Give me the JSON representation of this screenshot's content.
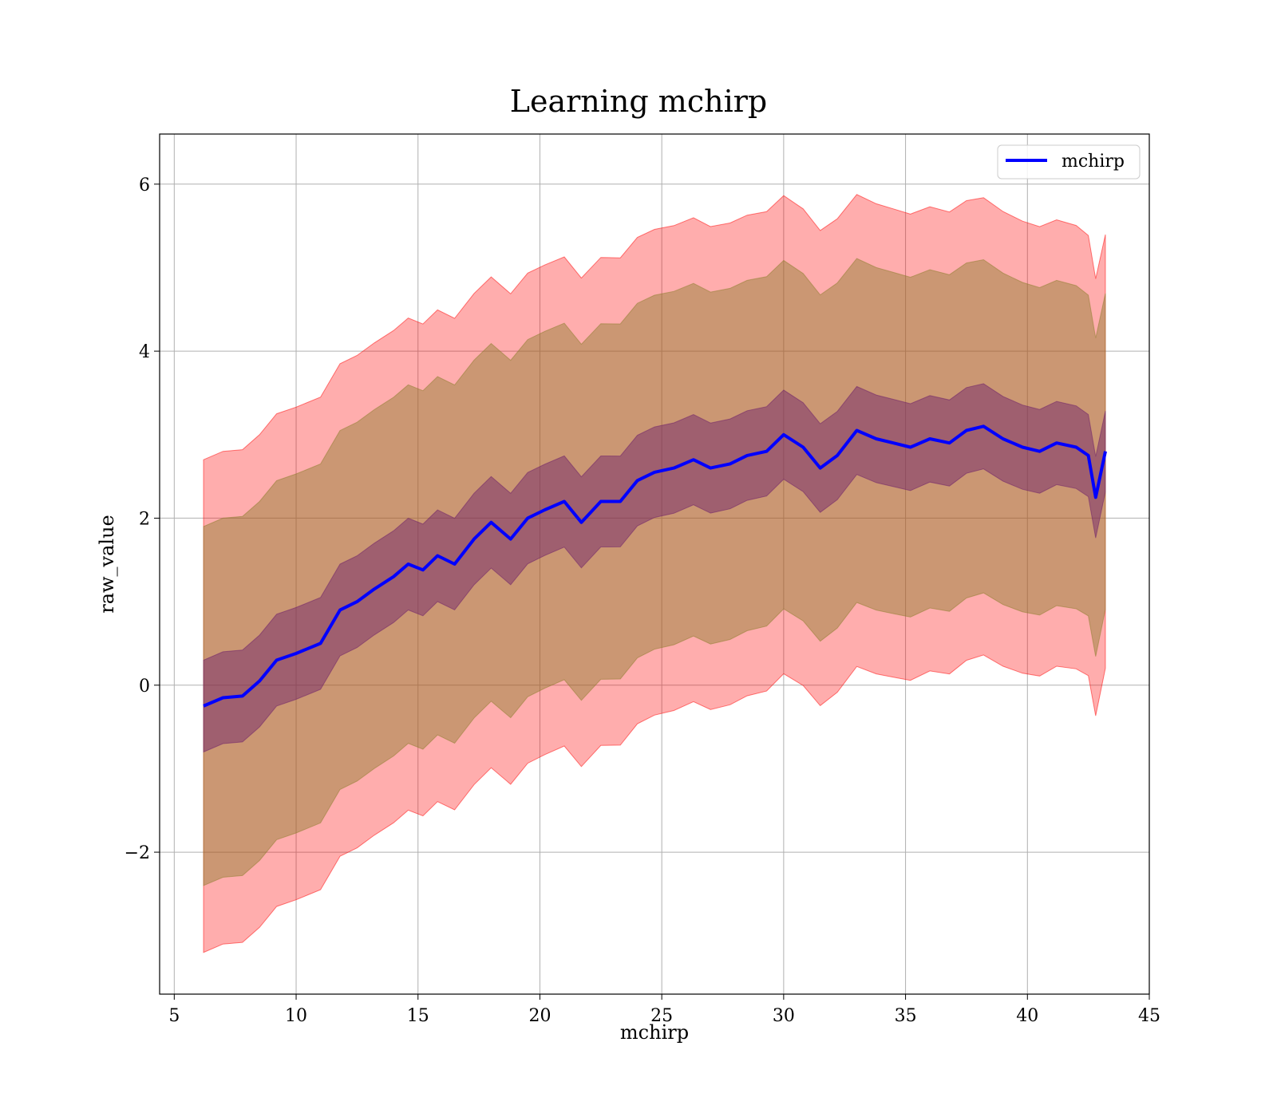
{
  "chart_data": {
    "type": "line",
    "title": "Learning mchirp",
    "xlabel": "mchirp",
    "ylabel": "raw_value",
    "xlim": [
      4.4,
      45
    ],
    "ylim": [
      -3.7,
      6.6
    ],
    "xticks": [
      5,
      10,
      15,
      20,
      25,
      30,
      35,
      40,
      45
    ],
    "xtick_labels": [
      "5",
      "10",
      "15",
      "20",
      "25",
      "30",
      "35",
      "40",
      "45"
    ],
    "yticks": [
      -2,
      0,
      2,
      4,
      6
    ],
    "ytick_labels": [
      "−2",
      "0",
      "2",
      "4",
      "6"
    ],
    "grid": true,
    "legend": {
      "position": "top-right",
      "entries": [
        "mchirp"
      ]
    },
    "colors": {
      "line": "#0000ff",
      "band_outer": "#ff0000",
      "band_middle": "#8b7d2c",
      "band_inner": "#6a1b6a"
    },
    "series": [
      {
        "name": "mchirp",
        "x": [
          6.2,
          7.0,
          7.8,
          8.5,
          9.2,
          10.0,
          11.0,
          11.8,
          12.5,
          13.2,
          14.0,
          14.6,
          15.2,
          15.8,
          16.5,
          17.3,
          18.0,
          18.8,
          19.5,
          20.2,
          21.0,
          21.7,
          22.5,
          23.3,
          24.0,
          24.7,
          25.5,
          26.3,
          27.0,
          27.8,
          28.5,
          29.3,
          30.0,
          30.8,
          31.5,
          32.2,
          33.0,
          33.8,
          34.5,
          35.2,
          36.0,
          36.8,
          37.5,
          38.2,
          39.0,
          39.8,
          40.5,
          41.2,
          42.0,
          42.5,
          42.8,
          43.2
        ],
        "y": [
          -0.25,
          -0.15,
          -0.13,
          0.05,
          0.3,
          0.38,
          0.5,
          0.9,
          1.0,
          1.15,
          1.3,
          1.45,
          1.38,
          1.55,
          1.45,
          1.75,
          1.95,
          1.75,
          2.0,
          2.1,
          2.2,
          1.95,
          2.2,
          2.2,
          2.45,
          2.55,
          2.6,
          2.7,
          2.6,
          2.65,
          2.75,
          2.8,
          3.0,
          2.85,
          2.6,
          2.75,
          3.05,
          2.95,
          2.9,
          2.85,
          2.95,
          2.9,
          3.05,
          3.1,
          2.95,
          2.85,
          2.8,
          2.9,
          2.85,
          2.75,
          2.25,
          2.8
        ]
      }
    ],
    "bands": [
      {
        "level": "outer",
        "half_width": 2.95
      },
      {
        "level": "middle",
        "half_width": 2.15
      },
      {
        "level": "inner",
        "half_width": 0.55
      }
    ]
  }
}
